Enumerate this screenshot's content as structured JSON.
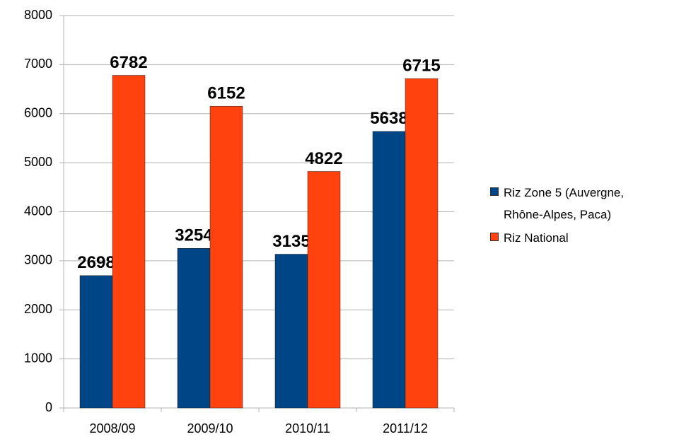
{
  "chart_data": {
    "type": "bar",
    "categories": [
      "2008/09",
      "2009/10",
      "2010/11",
      "2011/12"
    ],
    "series": [
      {
        "name": "Riz Zone 5 (Auvergne, Rhône-Alpes, Paca)",
        "color": "#004586",
        "values": [
          2698,
          3254,
          3135,
          5638
        ]
      },
      {
        "name": "Riz National",
        "color": "#ff420e",
        "values": [
          6782,
          6152,
          4822,
          6715
        ]
      }
    ],
    "ylim": [
      0,
      8000
    ],
    "yticks": [
      0,
      1000,
      2000,
      3000,
      4000,
      5000,
      6000,
      7000,
      8000
    ],
    "grid": true,
    "legend": "right"
  }
}
